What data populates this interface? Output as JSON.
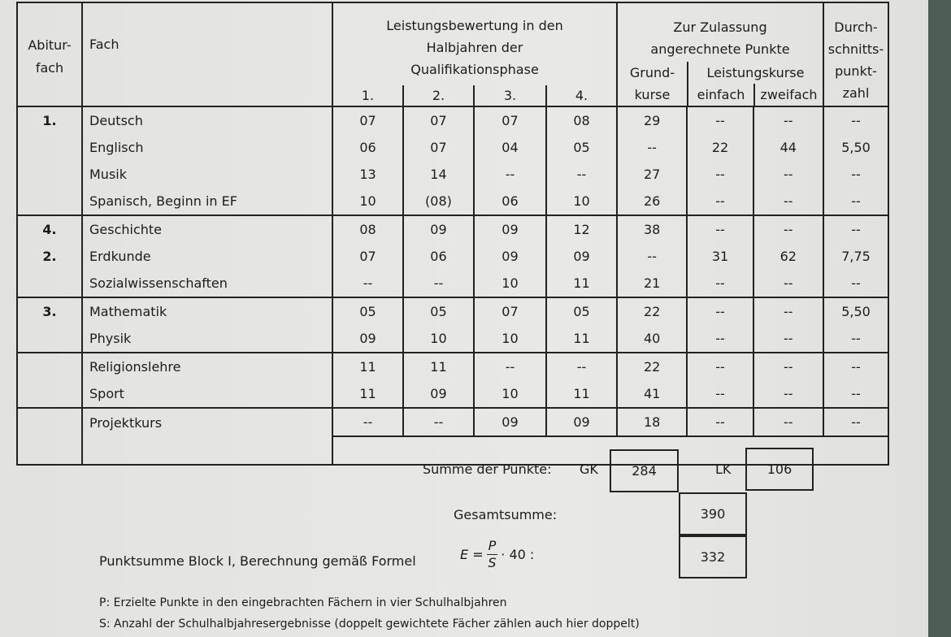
{
  "header": {
    "abiturfach": "Abitur-fach",
    "abitur_l1": "Abitur-",
    "abitur_l2": "fach",
    "fach": "Fach",
    "leistung_l1": "Leistungsbewertung in den",
    "leistung_l2": "Halbjahren der",
    "leistung_l3": "Qualifikationsphase",
    "halbjahre": [
      "1.",
      "2.",
      "3.",
      "4."
    ],
    "zulassung_l1": "Zur Zulassung",
    "zulassung_l2": "angerechnete Punkte",
    "grund_l1": "Grund-",
    "grund_l2": "kurse",
    "lk": "Leistungskurse",
    "einfach": "einfach",
    "zweifach": "zweifach",
    "durch_l1": "Durch-",
    "durch_l2": "schnitts-",
    "durch_l3": "punkt-",
    "durch_l4": "zahl"
  },
  "groups": [
    {
      "abitur": "1.",
      "rows": [
        {
          "fach": "Deutsch",
          "hj": [
            "07",
            "07",
            "07",
            "08"
          ],
          "gk": "29",
          "einfach": "--",
          "zweifach": "--",
          "schnitt": "--"
        },
        {
          "fach": "Englisch",
          "hj": [
            "06",
            "07",
            "04",
            "05"
          ],
          "gk": "--",
          "einfach": "22",
          "zweifach": "44",
          "schnitt": "5,50"
        },
        {
          "fach": "Musik",
          "hj": [
            "13",
            "14",
            "--",
            "--"
          ],
          "gk": "27",
          "einfach": "--",
          "zweifach": "--",
          "schnitt": "--"
        },
        {
          "fach": "Spanisch, Beginn in EF",
          "hj": [
            "10",
            "(08)",
            "06",
            "10"
          ],
          "gk": "26",
          "einfach": "--",
          "zweifach": "--",
          "schnitt": "--"
        }
      ]
    },
    {
      "abitur": "4.\n2.",
      "rows": [
        {
          "fach": "Geschichte",
          "abitur": "4.",
          "hj": [
            "08",
            "09",
            "09",
            "12"
          ],
          "gk": "38",
          "einfach": "--",
          "zweifach": "--",
          "schnitt": "--"
        },
        {
          "fach": "Erdkunde",
          "abitur": "2.",
          "hj": [
            "07",
            "06",
            "09",
            "09"
          ],
          "gk": "--",
          "einfach": "31",
          "zweifach": "62",
          "schnitt": "7,75"
        },
        {
          "fach": "Sozialwissenschaften",
          "hj": [
            "--",
            "--",
            "10",
            "11"
          ],
          "gk": "21",
          "einfach": "--",
          "zweifach": "--",
          "schnitt": "--"
        }
      ]
    },
    {
      "abitur": "3.",
      "rows": [
        {
          "fach": "Mathematik",
          "abitur": "3.",
          "hj": [
            "05",
            "05",
            "07",
            "05"
          ],
          "gk": "22",
          "einfach": "--",
          "zweifach": "--",
          "schnitt": "5,50"
        },
        {
          "fach": "Physik",
          "hj": [
            "09",
            "10",
            "10",
            "11"
          ],
          "gk": "40",
          "einfach": "--",
          "zweifach": "--",
          "schnitt": "--"
        }
      ]
    },
    {
      "abitur": "",
      "rows": [
        {
          "fach": "Religionslehre",
          "hj": [
            "11",
            "11",
            "--",
            "--"
          ],
          "gk": "22",
          "einfach": "--",
          "zweifach": "--",
          "schnitt": "--"
        },
        {
          "fach": "Sport",
          "hj": [
            "11",
            "09",
            "10",
            "11"
          ],
          "gk": "41",
          "einfach": "--",
          "zweifach": "--",
          "schnitt": "--"
        }
      ]
    },
    {
      "abitur": "",
      "rows": [
        {
          "fach": "Projektkurs",
          "hj": [
            "--",
            "--",
            "09",
            "09"
          ],
          "gk": "18",
          "einfach": "--",
          "zweifach": "--",
          "schnitt": "--"
        }
      ]
    }
  ],
  "summary": {
    "summe_label": "Summe der Punkte:",
    "gk_label": "GK",
    "gk_value": "284",
    "lk_label": "LK",
    "lk_value": "106",
    "gesamt_label": "Gesamtsumme:",
    "gesamt_value": "390",
    "block_label": "Punktsumme Block I, Berechnung gemäß Formel",
    "formula_lhs": "E =",
    "formula_num": "P",
    "formula_den": "S",
    "formula_rhs": "· 40 :",
    "block_value": "332"
  },
  "footnotes": {
    "p": "P: Erzielte Punkte in den eingebrachten Fächern in vier Schulhalbjahren",
    "s": "S: Anzahl der Schulhalbjahresergebnisse (doppelt gewichtete Fächer zählen auch hier doppelt)"
  }
}
